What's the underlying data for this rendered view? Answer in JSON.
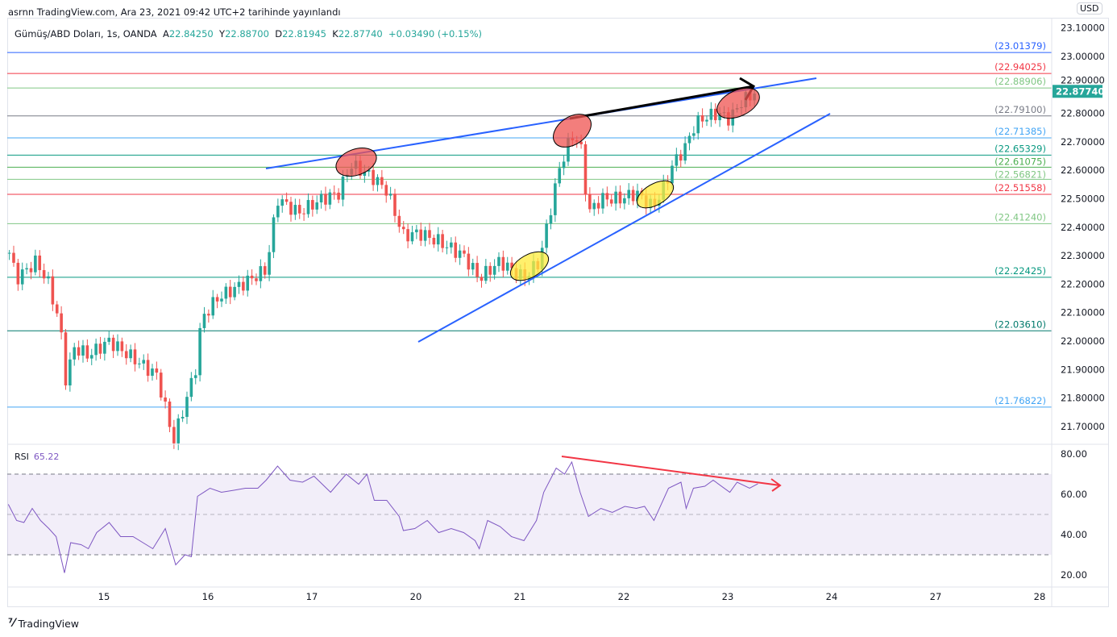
{
  "header": {
    "published": "asrnn TradingView.com, Ara 23, 2021 09:42 UTC+2 tarihinde yayınlandı",
    "symbol": "Gümüş/ABD Doları, 1s, OANDA",
    "open_label": "A",
    "open": "22.84250",
    "high_label": "Y",
    "high": "22.88700",
    "low_label": "D",
    "low": "22.81945",
    "close_label": "K",
    "close": "22.87740",
    "change": "+0.03490 (+0.15%)"
  },
  "currency": "USD",
  "logo": "TradingView",
  "colors": {
    "up": "#26a69a",
    "down": "#ef5350",
    "rsi": "#7e57c2",
    "trend": "#2962ff"
  },
  "chart_data": {
    "type": "candlestick",
    "timeframe": "1h",
    "x_unit": "trading days relative to label '15'",
    "x_ticks": [
      {
        "t": 0,
        "label": "15"
      },
      {
        "t": 1,
        "label": "16"
      },
      {
        "t": 2,
        "label": "17"
      },
      {
        "t": 3,
        "label": "20"
      },
      {
        "t": 4,
        "label": "21"
      },
      {
        "t": 5,
        "label": "22"
      },
      {
        "t": 6,
        "label": "23"
      },
      {
        "t": 7,
        "label": "24"
      },
      {
        "t": 8,
        "label": "27"
      },
      {
        "t": 9,
        "label": "28"
      }
    ],
    "y_ticks": [
      "23.10000",
      "23.00000",
      "22.90000",
      "22.80000",
      "22.70000",
      "22.60000",
      "22.50000",
      "22.40000",
      "22.30000",
      "22.20000",
      "22.10000",
      "22.00000",
      "21.90000",
      "21.80000",
      "21.70000"
    ],
    "ylim": [
      21.62,
      23.14
    ],
    "last_price": "22.87740",
    "price_path": [
      [
        -0.91,
        22.31
      ],
      [
        -0.84,
        22.22
      ],
      [
        -0.65,
        22.28
      ],
      [
        -0.53,
        22.2
      ],
      [
        -0.42,
        22.05
      ],
      [
        -0.36,
        21.84
      ],
      [
        -0.3,
        21.98
      ],
      [
        -0.15,
        21.95
      ],
      [
        0.05,
        22.0
      ],
      [
        0.24,
        21.95
      ],
      [
        0.51,
        21.88
      ],
      [
        0.67,
        21.65
      ],
      [
        0.88,
        21.9
      ],
      [
        0.94,
        22.08
      ],
      [
        1.09,
        22.15
      ],
      [
        1.33,
        22.2
      ],
      [
        1.56,
        22.25
      ],
      [
        1.67,
        22.5
      ],
      [
        1.87,
        22.45
      ],
      [
        2.1,
        22.5
      ],
      [
        2.26,
        22.52
      ],
      [
        2.37,
        22.62
      ],
      [
        2.57,
        22.58
      ],
      [
        2.72,
        22.53
      ],
      [
        2.88,
        22.37
      ],
      [
        3.03,
        22.38
      ],
      [
        3.22,
        22.35
      ],
      [
        3.46,
        22.3
      ],
      [
        3.61,
        22.22
      ],
      [
        3.81,
        22.28
      ],
      [
        4.04,
        22.22
      ],
      [
        4.19,
        22.28
      ],
      [
        4.27,
        22.42
      ],
      [
        4.39,
        22.62
      ],
      [
        4.5,
        22.72
      ],
      [
        4.58,
        22.7
      ],
      [
        4.66,
        22.45
      ],
      [
        4.78,
        22.5
      ],
      [
        4.97,
        22.5
      ],
      [
        5.12,
        22.52
      ],
      [
        5.28,
        22.47
      ],
      [
        5.4,
        22.55
      ],
      [
        5.47,
        22.62
      ],
      [
        5.59,
        22.68
      ],
      [
        5.67,
        22.75
      ],
      [
        5.74,
        22.78
      ],
      [
        5.9,
        22.8
      ],
      [
        6.02,
        22.78
      ],
      [
        6.13,
        22.84
      ],
      [
        6.29,
        22.8774
      ]
    ],
    "levels": [
      {
        "label": "(23.01379)",
        "price": 23.01379,
        "color": "#2962ff"
      },
      {
        "label": "(22.94025)",
        "price": 22.94025,
        "color": "#f23645"
      },
      {
        "label": "(22.88906)",
        "price": 22.88906,
        "color": "#81c784"
      },
      {
        "label": "(22.79100)",
        "price": 22.791,
        "color": "#787b86"
      },
      {
        "label": "(22.71385)",
        "price": 22.71385,
        "color": "#42a5f5"
      },
      {
        "label": "(22.65329)",
        "price": 22.65329,
        "color": "#089981"
      },
      {
        "label": "(22.61075)",
        "price": 22.61075,
        "color": "#4caf50"
      },
      {
        "label": "(22.56821)",
        "price": 22.56821,
        "color": "#81c784"
      },
      {
        "label": "(22.51558)",
        "price": 22.51558,
        "color": "#f23645"
      },
      {
        "label": "(22.41240)",
        "price": 22.4124,
        "color": "#81c784"
      },
      {
        "label": "(22.22425)",
        "price": 22.22425,
        "color": "#089981"
      },
      {
        "label": "(22.03610)",
        "price": 22.0361,
        "color": "#00796b"
      },
      {
        "label": "(21.76822)",
        "price": 21.76822,
        "color": "#42a5f5"
      }
    ],
    "rsi": {
      "label": "RSI",
      "value": "65.22",
      "y_ticks": [
        "80.00",
        "60.00",
        "40.00",
        "20.00"
      ],
      "bands": [
        70,
        50,
        30
      ],
      "series": [
        [
          -0.92,
          55
        ],
        [
          -0.84,
          47
        ],
        [
          -0.77,
          46
        ],
        [
          -0.69,
          53
        ],
        [
          -0.61,
          47
        ],
        [
          -0.53,
          43
        ],
        [
          -0.46,
          39
        ],
        [
          -0.38,
          21
        ],
        [
          -0.32,
          36
        ],
        [
          -0.22,
          35
        ],
        [
          -0.15,
          33
        ],
        [
          -0.07,
          41
        ],
        [
          0.05,
          46
        ],
        [
          0.16,
          39
        ],
        [
          0.28,
          39
        ],
        [
          0.47,
          33
        ],
        [
          0.59,
          43
        ],
        [
          0.69,
          25
        ],
        [
          0.78,
          30
        ],
        [
          0.84,
          29
        ],
        [
          0.9,
          59
        ],
        [
          1.02,
          63
        ],
        [
          1.13,
          61
        ],
        [
          1.25,
          62
        ],
        [
          1.36,
          63
        ],
        [
          1.48,
          63
        ],
        [
          1.56,
          67
        ],
        [
          1.67,
          74
        ],
        [
          1.79,
          67
        ],
        [
          1.91,
          66
        ],
        [
          2.02,
          69
        ],
        [
          2.18,
          61
        ],
        [
          2.33,
          70
        ],
        [
          2.45,
          65
        ],
        [
          2.53,
          70
        ],
        [
          2.6,
          57
        ],
        [
          2.72,
          57
        ],
        [
          2.84,
          49
        ],
        [
          2.88,
          42
        ],
        [
          2.99,
          43
        ],
        [
          3.11,
          47
        ],
        [
          3.22,
          41
        ],
        [
          3.34,
          43
        ],
        [
          3.46,
          41
        ],
        [
          3.57,
          37
        ],
        [
          3.61,
          33
        ],
        [
          3.69,
          47
        ],
        [
          3.81,
          44
        ],
        [
          3.92,
          39
        ],
        [
          4.04,
          37
        ],
        [
          4.16,
          47
        ],
        [
          4.23,
          61
        ],
        [
          4.35,
          73
        ],
        [
          4.43,
          70
        ],
        [
          4.5,
          76
        ],
        [
          4.58,
          61
        ],
        [
          4.66,
          49
        ],
        [
          4.78,
          53
        ],
        [
          4.89,
          51
        ],
        [
          5.01,
          54
        ],
        [
          5.12,
          53
        ],
        [
          5.2,
          54
        ],
        [
          5.29,
          47
        ],
        [
          5.43,
          63
        ],
        [
          5.55,
          66
        ],
        [
          5.6,
          53
        ],
        [
          5.67,
          63
        ],
        [
          5.78,
          64
        ],
        [
          5.86,
          67
        ],
        [
          6.02,
          61
        ],
        [
          6.09,
          66
        ],
        [
          6.21,
          63
        ],
        [
          6.29,
          65.22
        ]
      ]
    }
  }
}
